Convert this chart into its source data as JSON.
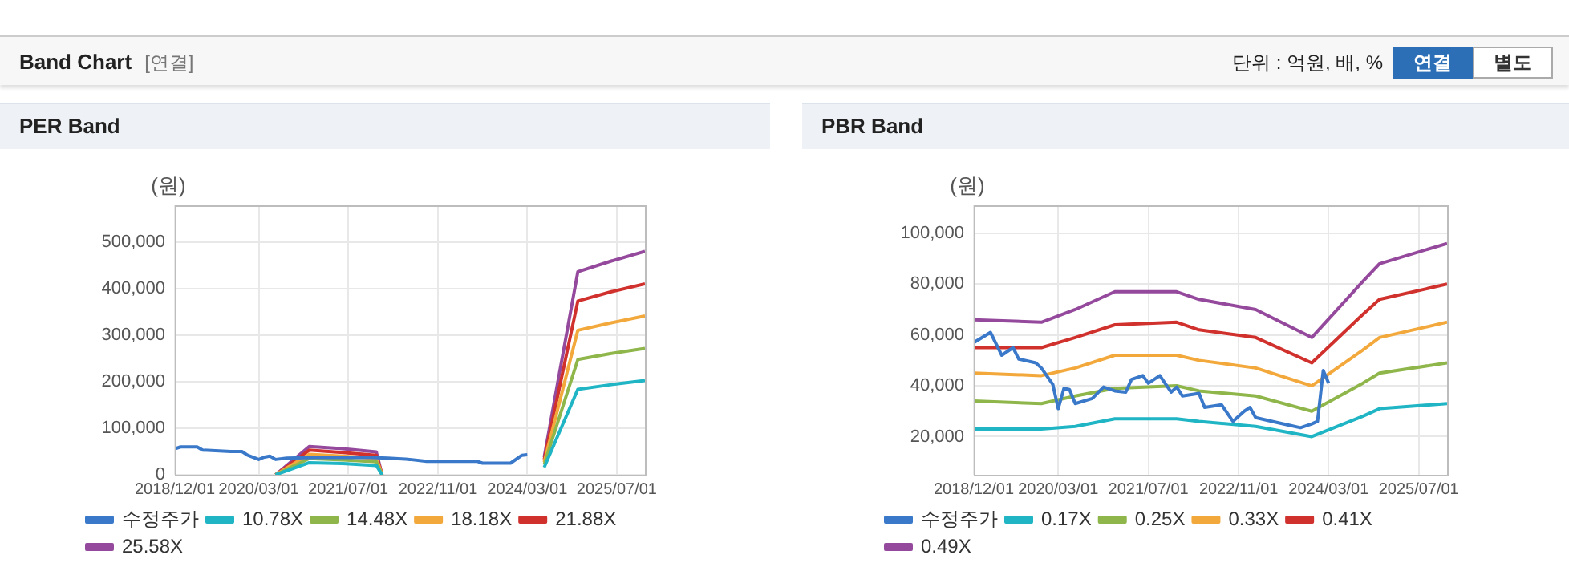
{
  "chart_data": [
    {
      "type": "other",
      "title": "Band Chart",
      "annotations": [
        "[연결]",
        "단위 : 억원, 배, %",
        "연결",
        "별도"
      ]
    },
    {
      "type": "line",
      "title": "PER Band",
      "ylabel": "(원)",
      "legend": "bottom",
      "grid": true,
      "marker": "none",
      "xlim": [
        "2018-12-01",
        "2025-12-01"
      ],
      "xticks": [
        {
          "value": "2018-12-01",
          "label": "2018/12/01"
        },
        {
          "value": "2020-03-01",
          "label": "2020/03/01"
        },
        {
          "value": "2021-07-01",
          "label": "2021/07/01"
        },
        {
          "value": "2022-11-01",
          "label": "2022/11/01"
        },
        {
          "value": "2024-03-01",
          "label": "2024/03/01"
        },
        {
          "value": "2025-07-01",
          "label": "2025/07/01"
        }
      ],
      "ylim": [
        0,
        580000
      ],
      "yticks": [
        0,
        {
          "value": 100000,
          "label": "100,000"
        },
        {
          "value": 200000,
          "label": "200,000"
        },
        {
          "value": 300000,
          "label": "300,000"
        },
        {
          "value": 400000,
          "label": "400,000"
        },
        {
          "value": 500000,
          "label": "500,000"
        }
      ],
      "series": [
        {
          "name": "수정주가",
          "color": "#3a78c9",
          "x": [
            "2018-12",
            "2019-01",
            "2019-04",
            "2019-05",
            "2019-10",
            "2019-12",
            "2020-01",
            "2020-03",
            "2020-04",
            "2020-05",
            "2020-06",
            "2020-08",
            "2021-01",
            "2021-11",
            "2022-02",
            "2022-06",
            "2022-09",
            "2023-06",
            "2023-07",
            "2023-12",
            "2024-02",
            "2024-03"
          ],
          "values": [
            56000,
            60000,
            60000,
            53000,
            50000,
            50000,
            42000,
            33000,
            38000,
            40000,
            33000,
            36000,
            37000,
            37000,
            36000,
            33000,
            29000,
            29000,
            25000,
            25000,
            42000,
            43000
          ]
        },
        {
          "name": "10.78X",
          "color": "#1fb5c4",
          "x": [
            "2020-06",
            "2020-12",
            "2021-06",
            "2021-12",
            "2022-01",
            "2023-02",
            "2024-06",
            "2024-12",
            "2025-06",
            "2025-12"
          ],
          "values": [
            0,
            26000,
            24000,
            20000,
            0,
            null,
            16000,
            184000,
            194000,
            203000
          ]
        },
        {
          "name": "14.48X",
          "color": "#8fb64a",
          "x": [
            "2020-06",
            "2020-12",
            "2021-06",
            "2021-12",
            "2022-01",
            "2023-02",
            "2024-06",
            "2024-12",
            "2025-06",
            "2025-12"
          ],
          "values": [
            0,
            35000,
            32000,
            28000,
            0,
            null,
            22000,
            248000,
            261000,
            272000
          ]
        },
        {
          "name": "18.18X",
          "color": "#f3a83b",
          "x": [
            "2020-06",
            "2020-12",
            "2021-06",
            "2021-12",
            "2022-01",
            "2023-02",
            "2024-06",
            "2024-12",
            "2025-06",
            "2025-12"
          ],
          "values": [
            0,
            44000,
            40000,
            35000,
            0,
            null,
            27000,
            311000,
            327000,
            342000
          ]
        },
        {
          "name": "21.88X",
          "color": "#d0312d",
          "x": [
            "2020-06",
            "2020-12",
            "2021-06",
            "2021-12",
            "2022-01",
            "2023-02",
            "2024-06",
            "2024-12",
            "2025-06",
            "2025-12"
          ],
          "values": [
            0,
            53000,
            48000,
            42000,
            0,
            null,
            33000,
            374000,
            394000,
            411000
          ]
        },
        {
          "name": "25.58X",
          "color": "#94499c",
          "x": [
            "2020-06",
            "2020-12",
            "2021-06",
            "2021-12",
            "2022-01",
            "2023-02",
            "2024-06",
            "2024-12",
            "2025-06",
            "2025-12"
          ],
          "values": [
            0,
            61000,
            56000,
            49000,
            0,
            null,
            38000,
            437000,
            460000,
            481000
          ]
        }
      ]
    },
    {
      "type": "line",
      "title": "PBR Band",
      "ylabel": "(원)",
      "legend": "bottom",
      "grid": true,
      "marker": "none",
      "xlim": [
        "2018-12-01",
        "2025-12-01"
      ],
      "xticks": [
        {
          "value": "2018-12-01",
          "label": "2018/12/01"
        },
        {
          "value": "2020-03-01",
          "label": "2020/03/01"
        },
        {
          "value": "2021-07-01",
          "label": "2021/07/01"
        },
        {
          "value": "2022-11-01",
          "label": "2022/11/01"
        },
        {
          "value": "2024-03-01",
          "label": "2024/03/01"
        },
        {
          "value": "2025-07-01",
          "label": "2025/07/01"
        }
      ],
      "ylim": [
        5000,
        111000
      ],
      "yticks": [
        {
          "value": 20000,
          "label": "20,000"
        },
        {
          "value": 40000,
          "label": "40,000"
        },
        {
          "value": 60000,
          "label": "60,000"
        },
        {
          "value": 80000,
          "label": "80,000"
        },
        {
          "value": 100000,
          "label": "100,000"
        }
      ],
      "series": [
        {
          "name": "수정주가",
          "color": "#3a78c9",
          "x": [
            "2018-12",
            "2019-03",
            "2019-05",
            "2019-07",
            "2019-08",
            "2019-11",
            "2019-12",
            "2020-02",
            "2020-03",
            "2020-04",
            "2020-05",
            "2020-06",
            "2020-09",
            "2020-11",
            "2021-01",
            "2021-03",
            "2021-04",
            "2021-06",
            "2021-07",
            "2021-09",
            "2021-11",
            "2021-12",
            "2022-01",
            "2022-04",
            "2022-05",
            "2022-08",
            "2022-10",
            "2022-12",
            "2023-01",
            "2023-02",
            "2023-05",
            "2023-08",
            "2023-10",
            "2023-12",
            "2024-01",
            "2024-02",
            "2024-03"
          ],
          "values": [
            57000,
            61000,
            52000,
            55000,
            50500,
            49000,
            47000,
            40500,
            31000,
            39000,
            38500,
            33000,
            35000,
            39500,
            38000,
            37500,
            42500,
            44000,
            41000,
            44000,
            37500,
            39500,
            36000,
            37000,
            31500,
            32500,
            26000,
            30000,
            31500,
            27500,
            26000,
            24500,
            23500,
            25000,
            26000,
            46000,
            41000
          ]
        },
        {
          "name": "0.17X",
          "color": "#1fb5c4",
          "x": [
            "2018-12",
            "2019-12",
            "2020-06",
            "2021-01",
            "2021-12",
            "2022-04",
            "2023-02",
            "2023-12",
            "2024-09",
            "2024-12",
            "2025-12"
          ],
          "values": [
            23000,
            23000,
            24000,
            27000,
            27000,
            26000,
            24000,
            20000,
            28000,
            31000,
            33000
          ]
        },
        {
          "name": "0.25X",
          "color": "#8fb64a",
          "x": [
            "2018-12",
            "2019-12",
            "2020-06",
            "2021-01",
            "2021-12",
            "2022-04",
            "2023-02",
            "2023-12",
            "2024-09",
            "2024-12",
            "2025-12"
          ],
          "values": [
            34000,
            33000,
            36000,
            39000,
            40000,
            38000,
            36000,
            30000,
            41000,
            45000,
            49000
          ]
        },
        {
          "name": "0.33X",
          "color": "#f3a83b",
          "x": [
            "2018-12",
            "2019-12",
            "2020-06",
            "2021-01",
            "2021-12",
            "2022-04",
            "2023-02",
            "2023-12",
            "2024-09",
            "2024-12",
            "2025-12"
          ],
          "values": [
            45000,
            44000,
            47000,
            52000,
            52000,
            50000,
            47000,
            40000,
            54000,
            59000,
            65000
          ]
        },
        {
          "name": "0.41X",
          "color": "#d0312d",
          "x": [
            "2018-12",
            "2019-12",
            "2020-06",
            "2021-01",
            "2021-12",
            "2022-04",
            "2023-02",
            "2023-12",
            "2024-09",
            "2024-12",
            "2025-12"
          ],
          "values": [
            55000,
            55000,
            59000,
            64000,
            65000,
            62000,
            59000,
            49000,
            68000,
            74000,
            80000
          ]
        },
        {
          "name": "0.49X",
          "color": "#94499c",
          "x": [
            "2018-12",
            "2019-12",
            "2020-06",
            "2021-01",
            "2021-12",
            "2022-04",
            "2023-02",
            "2023-12",
            "2024-09",
            "2024-12",
            "2025-12"
          ],
          "values": [
            66000,
            65000,
            70000,
            77000,
            77000,
            74000,
            70000,
            59000,
            81000,
            88000,
            96000
          ]
        }
      ]
    }
  ]
}
